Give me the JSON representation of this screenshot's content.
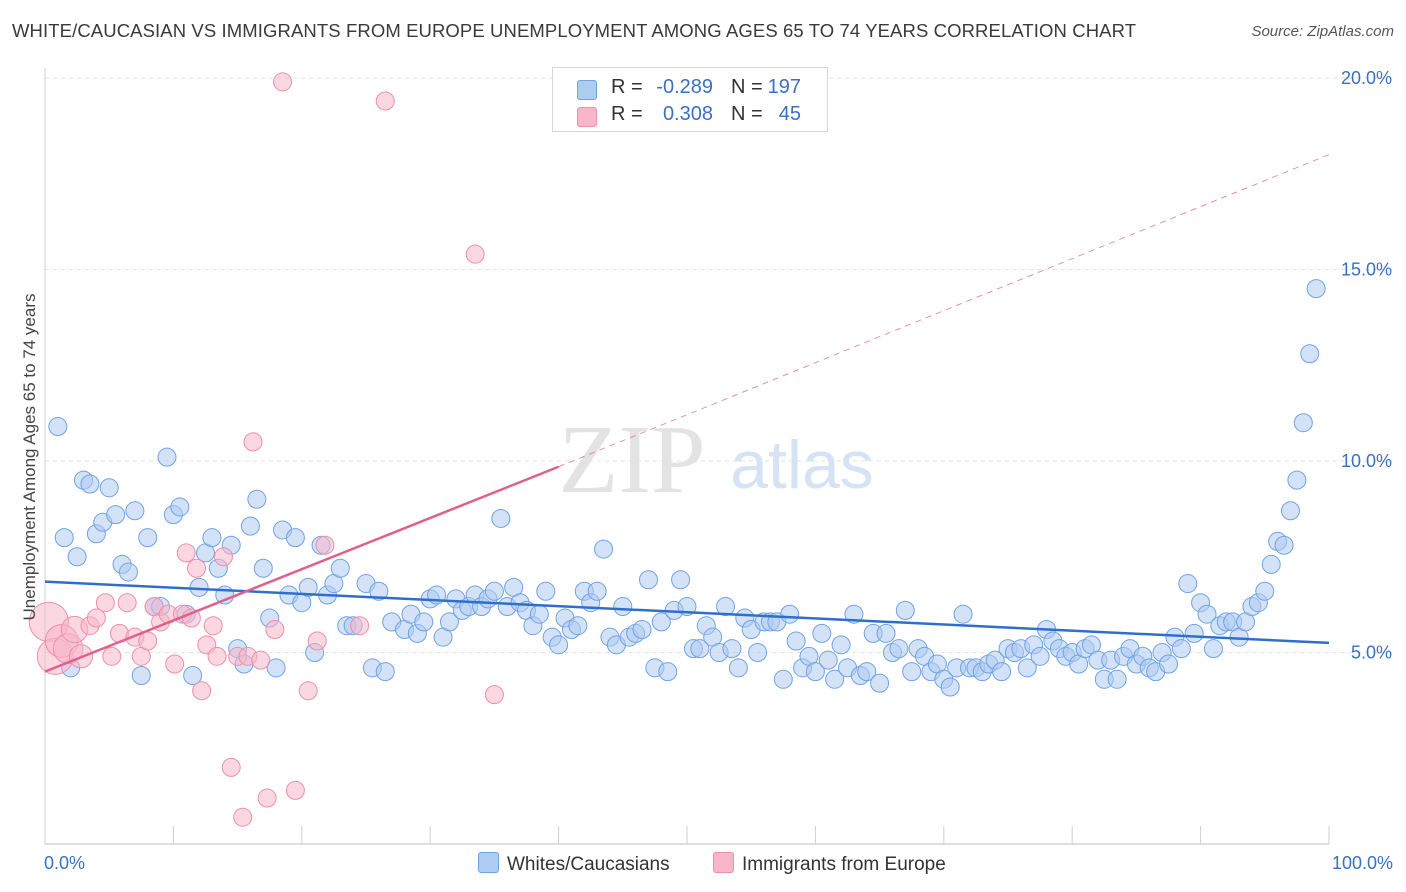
{
  "header": {
    "title": "WHITE/CAUCASIAN VS IMMIGRANTS FROM EUROPE UNEMPLOYMENT AMONG AGES 65 TO 74 YEARS CORRELATION CHART",
    "source": "Source: ZipAtlas.com"
  },
  "watermark": {
    "zip": "ZIP",
    "atlas": "atlas"
  },
  "legend": {
    "rows": [
      {
        "r_label": "R =",
        "r_value": "-0.289",
        "n_label": "N =",
        "n_value": "197",
        "color": "#aecbf0"
      },
      {
        "r_label": "R =",
        "r_value": "0.308",
        "n_label": "N =",
        "n_value": "45",
        "color": "#f7b6c9"
      }
    ]
  },
  "bottom_legend": {
    "series1": "Whites/Caucasians",
    "series2": "Immigrants from Europe"
  },
  "chart_data": {
    "type": "scatter",
    "title": "WHITE/CAUCASIAN VS IMMIGRANTS FROM EUROPE UNEMPLOYMENT AMONG AGES 65 TO 74 YEARS CORRELATION CHART",
    "xlabel": "",
    "ylabel": "Unemployment Among Ages 65 to 74 years",
    "xlim": [
      0,
      100
    ],
    "ylim": [
      0,
      20.5
    ],
    "x_tick_labels": [
      "0.0%",
      "100.0%"
    ],
    "y_ticks": [
      5,
      10,
      15,
      20
    ],
    "y_tick_labels": [
      "5.0%",
      "10.0%",
      "15.0%",
      "20.0%"
    ],
    "grid": true,
    "legend_position": "top-center",
    "series": [
      {
        "name": "Whites/Caucasians",
        "color": "#6fa3e6",
        "fill": "#aecbf0",
        "trend": {
          "x": [
            0,
            100
          ],
          "y": [
            6.85,
            5.25
          ],
          "color": "#2f6fcc",
          "style": "solid"
        },
        "points": [
          [
            1,
            10.9
          ],
          [
            1.5,
            8
          ],
          [
            2,
            4.6
          ],
          [
            2.5,
            7.5
          ],
          [
            3,
            9.5
          ],
          [
            3.5,
            9.4
          ],
          [
            4,
            8.1
          ],
          [
            4.5,
            8.4
          ],
          [
            5,
            9.3
          ],
          [
            5.5,
            8.6
          ],
          [
            6,
            7.3
          ],
          [
            6.5,
            7.1
          ],
          [
            7,
            8.7
          ],
          [
            7.5,
            4.4
          ],
          [
            8,
            8
          ],
          [
            8.5,
            6.2
          ],
          [
            9,
            6.2
          ],
          [
            9.5,
            10.1
          ],
          [
            10,
            8.6
          ],
          [
            10.5,
            8.8
          ],
          [
            11,
            6
          ],
          [
            11.5,
            4.4
          ],
          [
            12,
            6.7
          ],
          [
            12.5,
            7.6
          ],
          [
            13,
            8
          ],
          [
            13.5,
            7.2
          ],
          [
            14,
            6.5
          ],
          [
            14.5,
            7.8
          ],
          [
            15,
            5.1
          ],
          [
            15.5,
            4.7
          ],
          [
            16,
            8.3
          ],
          [
            16.5,
            9
          ],
          [
            17,
            7.2
          ],
          [
            17.5,
            5.9
          ],
          [
            18,
            4.6
          ],
          [
            18.5,
            8.2
          ],
          [
            19,
            6.5
          ],
          [
            19.5,
            8
          ],
          [
            20,
            6.3
          ],
          [
            20.5,
            6.7
          ],
          [
            21,
            5
          ],
          [
            21.5,
            7.8
          ],
          [
            22,
            6.5
          ],
          [
            22.5,
            6.8
          ],
          [
            23,
            7.2
          ],
          [
            23.5,
            5.7
          ],
          [
            24,
            5.7
          ],
          [
            25,
            6.8
          ],
          [
            25.5,
            4.6
          ],
          [
            26,
            6.6
          ],
          [
            26.5,
            4.5
          ],
          [
            27,
            5.8
          ],
          [
            28,
            5.6
          ],
          [
            28.5,
            6
          ],
          [
            29,
            5.5
          ],
          [
            29.5,
            5.8
          ],
          [
            30,
            6.4
          ],
          [
            30.5,
            6.5
          ],
          [
            31,
            5.4
          ],
          [
            31.5,
            5.8
          ],
          [
            32,
            6.4
          ],
          [
            32.5,
            6.1
          ],
          [
            33,
            6.2
          ],
          [
            33.5,
            6.5
          ],
          [
            34,
            6.2
          ],
          [
            34.5,
            6.4
          ],
          [
            35,
            6.6
          ],
          [
            35.5,
            8.5
          ],
          [
            36,
            6.2
          ],
          [
            36.5,
            6.7
          ],
          [
            37,
            6.3
          ],
          [
            37.5,
            6.1
          ],
          [
            38,
            5.7
          ],
          [
            38.5,
            6
          ],
          [
            39,
            6.6
          ],
          [
            39.5,
            5.4
          ],
          [
            40,
            5.2
          ],
          [
            40.5,
            5.9
          ],
          [
            41,
            5.6
          ],
          [
            41.5,
            5.7
          ],
          [
            42,
            6.6
          ],
          [
            42.5,
            6.3
          ],
          [
            43,
            6.6
          ],
          [
            43.5,
            7.7
          ],
          [
            44,
            5.4
          ],
          [
            44.5,
            5.2
          ],
          [
            45,
            6.2
          ],
          [
            45.5,
            5.4
          ],
          [
            46,
            5.5
          ],
          [
            46.5,
            5.6
          ],
          [
            47,
            6.9
          ],
          [
            47.5,
            4.6
          ],
          [
            48,
            5.8
          ],
          [
            48.5,
            4.5
          ],
          [
            49,
            6.1
          ],
          [
            49.5,
            6.9
          ],
          [
            50,
            6.2
          ],
          [
            50.5,
            5.1
          ],
          [
            51,
            5.1
          ],
          [
            51.5,
            5.7
          ],
          [
            52,
            5.4
          ],
          [
            52.5,
            5
          ],
          [
            53,
            6.2
          ],
          [
            53.5,
            5.1
          ],
          [
            54,
            4.6
          ],
          [
            54.5,
            5.9
          ],
          [
            55,
            5.6
          ],
          [
            55.5,
            5
          ],
          [
            56,
            5.8
          ],
          [
            56.5,
            5.8
          ],
          [
            57,
            5.8
          ],
          [
            57.5,
            4.3
          ],
          [
            58,
            6
          ],
          [
            58.5,
            5.3
          ],
          [
            59,
            4.6
          ],
          [
            59.5,
            4.9
          ],
          [
            60,
            4.5
          ],
          [
            60.5,
            5.5
          ],
          [
            61,
            4.8
          ],
          [
            61.5,
            4.3
          ],
          [
            62,
            5.2
          ],
          [
            62.5,
            4.6
          ],
          [
            63,
            6
          ],
          [
            63.5,
            4.4
          ],
          [
            64,
            4.5
          ],
          [
            64.5,
            5.5
          ],
          [
            65,
            4.2
          ],
          [
            65.5,
            5.5
          ],
          [
            66,
            5
          ],
          [
            66.5,
            5.1
          ],
          [
            67,
            6.1
          ],
          [
            67.5,
            4.5
          ],
          [
            68,
            5.1
          ],
          [
            68.5,
            4.9
          ],
          [
            69,
            4.5
          ],
          [
            69.5,
            4.7
          ],
          [
            70,
            4.3
          ],
          [
            70.5,
            4.1
          ],
          [
            71,
            4.6
          ],
          [
            71.5,
            6
          ],
          [
            72,
            4.6
          ],
          [
            72.5,
            4.6
          ],
          [
            73,
            4.5
          ],
          [
            73.5,
            4.7
          ],
          [
            74,
            4.8
          ],
          [
            74.5,
            4.5
          ],
          [
            75,
            5.1
          ],
          [
            75.5,
            5
          ],
          [
            76,
            5.1
          ],
          [
            76.5,
            4.6
          ],
          [
            77,
            5.2
          ],
          [
            77.5,
            4.9
          ],
          [
            78,
            5.6
          ],
          [
            78.5,
            5.3
          ],
          [
            79,
            5.1
          ],
          [
            79.5,
            4.9
          ],
          [
            80,
            5
          ],
          [
            80.5,
            4.7
          ],
          [
            81,
            5.1
          ],
          [
            81.5,
            5.2
          ],
          [
            82,
            4.8
          ],
          [
            82.5,
            4.3
          ],
          [
            83,
            4.8
          ],
          [
            83.5,
            4.3
          ],
          [
            84,
            4.9
          ],
          [
            84.5,
            5.1
          ],
          [
            85,
            4.7
          ],
          [
            85.5,
            4.9
          ],
          [
            86,
            4.6
          ],
          [
            86.5,
            4.5
          ],
          [
            87,
            5
          ],
          [
            87.5,
            4.7
          ],
          [
            88,
            5.4
          ],
          [
            88.5,
            5.1
          ],
          [
            89,
            6.8
          ],
          [
            89.5,
            5.5
          ],
          [
            90,
            6.3
          ],
          [
            90.5,
            6
          ],
          [
            91,
            5.1
          ],
          [
            91.5,
            5.7
          ],
          [
            92,
            5.8
          ],
          [
            92.5,
            5.8
          ],
          [
            93,
            5.4
          ],
          [
            93.5,
            5.8
          ],
          [
            94,
            6.2
          ],
          [
            94.5,
            6.3
          ],
          [
            95,
            6.6
          ],
          [
            95.5,
            7.3
          ],
          [
            96,
            7.9
          ],
          [
            96.5,
            7.8
          ],
          [
            97,
            8.7
          ],
          [
            97.5,
            9.5
          ],
          [
            98,
            11
          ],
          [
            98.5,
            12.8
          ],
          [
            99,
            14.5
          ]
        ]
      },
      {
        "name": "Immigrants from Europe",
        "color": "#ee8fab",
        "fill": "#f7b6c9",
        "trend": {
          "x": [
            0,
            40,
            100
          ],
          "y": [
            4.5,
            9.85,
            18
          ],
          "color": "#e0608c",
          "style": "solid-then-dashed"
        },
        "points": [
          [
            0.3,
            5.8
          ],
          [
            0.8,
            4.9
          ],
          [
            1.3,
            5.3
          ],
          [
            1.8,
            5.1
          ],
          [
            2.3,
            5.6
          ],
          [
            2.8,
            4.9
          ],
          [
            3.5,
            5.7
          ],
          [
            4,
            5.9
          ],
          [
            4.7,
            6.3
          ],
          [
            5.2,
            4.9
          ],
          [
            5.8,
            5.5
          ],
          [
            6.4,
            6.3
          ],
          [
            7,
            5.4
          ],
          [
            7.5,
            4.9
          ],
          [
            8,
            5.3
          ],
          [
            8.5,
            6.2
          ],
          [
            9,
            5.8
          ],
          [
            9.6,
            6
          ],
          [
            10.1,
            4.7
          ],
          [
            10.7,
            6
          ],
          [
            11,
            7.6
          ],
          [
            11.4,
            5.9
          ],
          [
            11.8,
            7.2
          ],
          [
            12.2,
            4
          ],
          [
            12.6,
            5.2
          ],
          [
            13.1,
            5.7
          ],
          [
            13.4,
            4.9
          ],
          [
            13.9,
            7.5
          ],
          [
            14.5,
            2
          ],
          [
            15,
            4.9
          ],
          [
            15.4,
            0.7
          ],
          [
            15.8,
            4.9
          ],
          [
            16.2,
            10.5
          ],
          [
            16.8,
            4.8
          ],
          [
            17.3,
            1.2
          ],
          [
            17.9,
            5.6
          ],
          [
            18.5,
            19.9
          ],
          [
            19.5,
            1.4
          ],
          [
            20.5,
            4
          ],
          [
            21.2,
            5.3
          ],
          [
            21.8,
            7.8
          ],
          [
            24.5,
            5.7
          ],
          [
            26.5,
            19.4
          ],
          [
            33.5,
            15.4
          ],
          [
            35,
            3.9
          ]
        ]
      }
    ]
  }
}
